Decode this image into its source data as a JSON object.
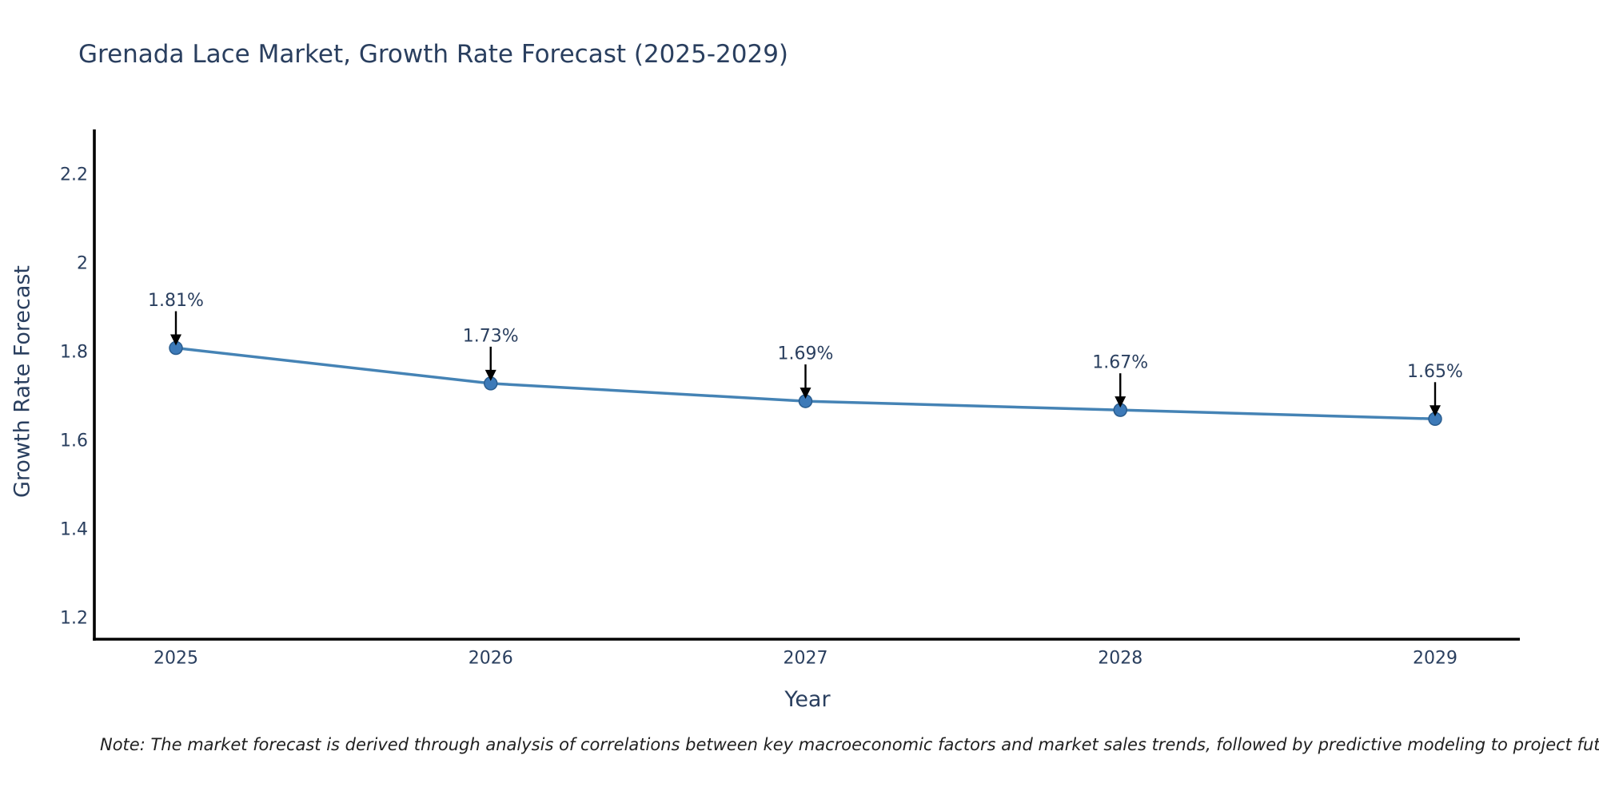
{
  "chart": {
    "title": "Grenada Lace Market, Growth Rate Forecast (2025-2029)",
    "x_axis_title": "Year",
    "y_axis_title": "Growth Rate Forecast",
    "note": "Note: The market forecast is derived through analysis of correlations between key macroeconomic factors and market sales trends, followed by predictive modeling to project future sales",
    "colors": {
      "title_text": "#2a3f5f",
      "tick_text": "#2a3f5f",
      "annotation_text": "#2a3f5f",
      "line": "#4583b5",
      "marker_fill": "#3d7ab8",
      "marker_edge": "#2a5d8f",
      "axis_line": "#000000",
      "arrow": "#000000",
      "note_text": "#1f1f1f"
    }
  },
  "chart_data": {
    "type": "line",
    "title": "Grenada Lace Market, Growth Rate Forecast (2025-2029)",
    "xlabel": "Year",
    "ylabel": "Growth Rate Forecast",
    "x": [
      2025,
      2026,
      2027,
      2028,
      2029
    ],
    "y": [
      1.81,
      1.73,
      1.69,
      1.67,
      1.65
    ],
    "point_labels": [
      "1.81%",
      "1.73%",
      "1.69%",
      "1.67%",
      "1.65%"
    ],
    "x_tick_labels": [
      "2025",
      "2026",
      "2027",
      "2028",
      "2029"
    ],
    "y_tick_values": [
      1.2,
      1.4,
      1.6,
      1.8,
      2.0,
      2.2
    ],
    "y_tick_labels": [
      "1.2",
      "1.4",
      "1.6",
      "1.8",
      "2",
      "2.2"
    ],
    "ylim": [
      1.153,
      2.303
    ],
    "grid": false,
    "legend": false,
    "markers": true,
    "annotations_with_arrows": true
  }
}
